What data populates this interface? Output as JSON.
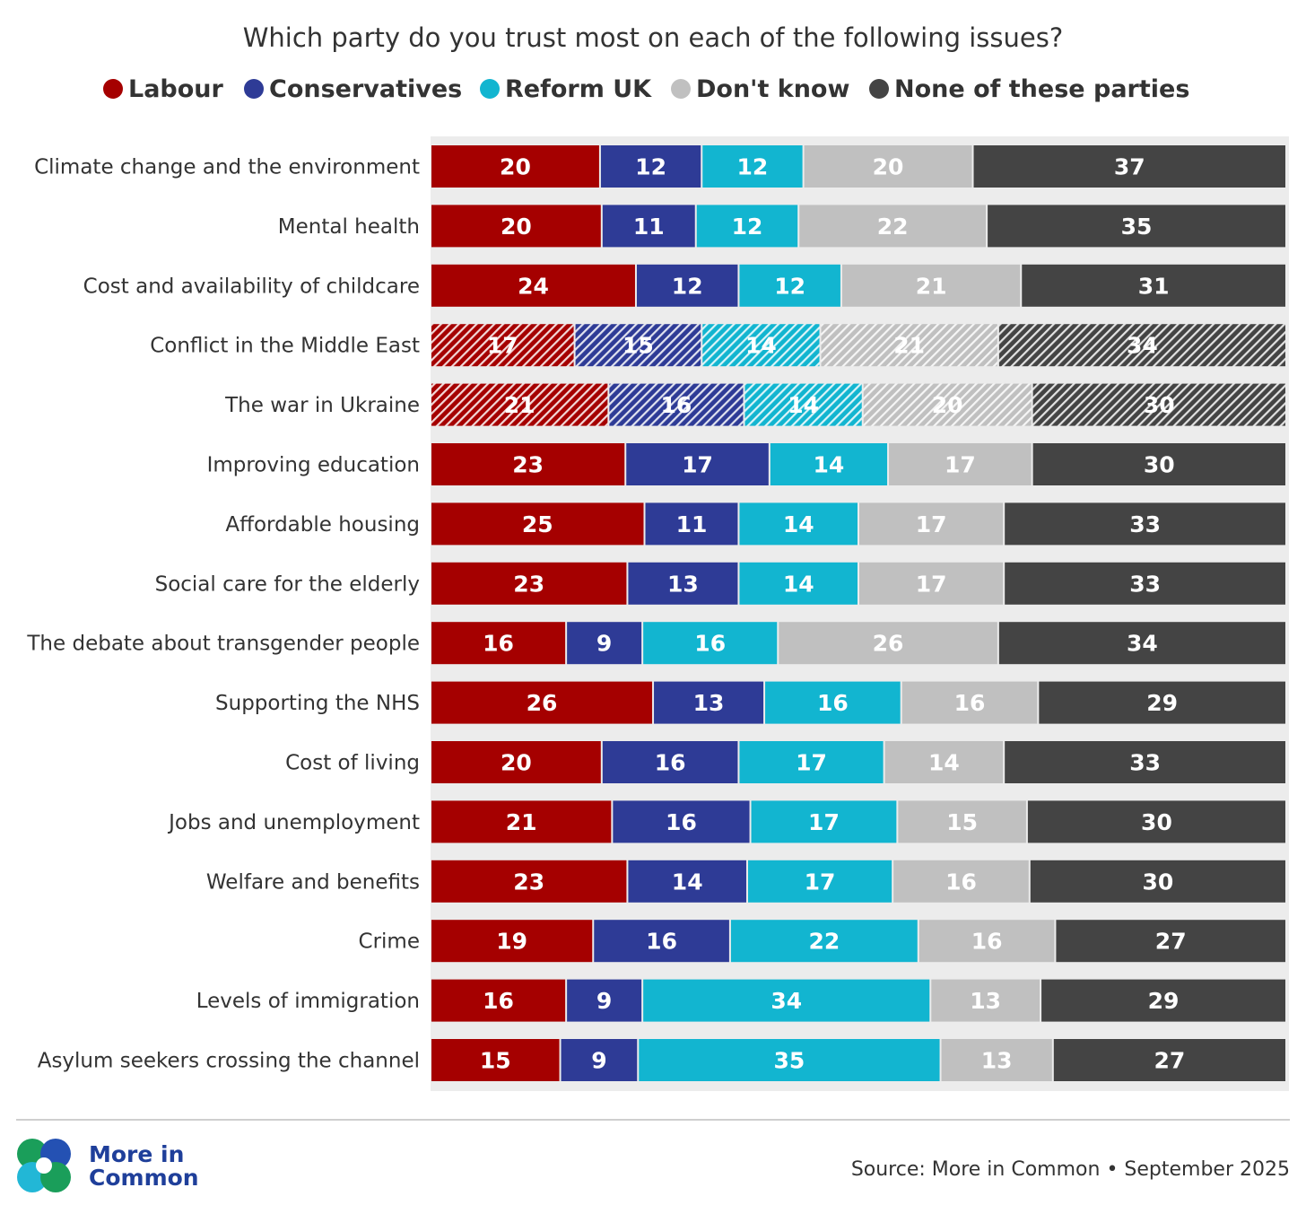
{
  "chart_data": {
    "type": "bar",
    "orientation": "horizontal-stacked-100",
    "title": "Which party do you trust most on each of the following issues?",
    "legend_placement": "top",
    "series": [
      {
        "name": "Labour",
        "color": "#a50000"
      },
      {
        "name": "Conservatives",
        "color": "#2e3b96"
      },
      {
        "name": "Reform UK",
        "color": "#12b5d0"
      },
      {
        "name": "Don't know",
        "color": "#c0c0c0"
      },
      {
        "name": "None of these parties",
        "color": "#444444"
      }
    ],
    "categories": [
      "Climate change and the environment",
      "Mental health",
      "Cost and availability of childcare",
      "Conflict in the Middle East",
      "The war in Ukraine",
      "Improving education",
      "Affordable housing",
      "Social care for the elderly",
      "The debate about transgender people",
      "Supporting the NHS",
      "Cost of living",
      "Jobs and unemployment",
      "Welfare and benefits",
      "Crime",
      "Levels of immigration",
      "Asylum seekers crossing the channel"
    ],
    "values": [
      [
        20,
        12,
        12,
        20,
        37
      ],
      [
        20,
        11,
        12,
        22,
        35
      ],
      [
        24,
        12,
        12,
        21,
        31
      ],
      [
        17,
        15,
        14,
        21,
        34
      ],
      [
        21,
        16,
        14,
        20,
        30
      ],
      [
        23,
        17,
        14,
        17,
        30
      ],
      [
        25,
        11,
        14,
        17,
        33
      ],
      [
        23,
        13,
        14,
        17,
        33
      ],
      [
        16,
        9,
        16,
        26,
        34
      ],
      [
        26,
        13,
        16,
        16,
        29
      ],
      [
        20,
        16,
        17,
        14,
        33
      ],
      [
        21,
        16,
        17,
        15,
        30
      ],
      [
        23,
        14,
        17,
        16,
        30
      ],
      [
        19,
        16,
        22,
        16,
        27
      ],
      [
        16,
        9,
        34,
        13,
        29
      ],
      [
        15,
        9,
        35,
        13,
        27
      ]
    ],
    "hatched_categories": [
      "Conflict in the Middle East",
      "The war in Ukraine"
    ],
    "grid": false
  },
  "footer": {
    "logo_line1": "More in",
    "logo_line2": "Common",
    "source": "Source: More in Common • September 2025"
  }
}
